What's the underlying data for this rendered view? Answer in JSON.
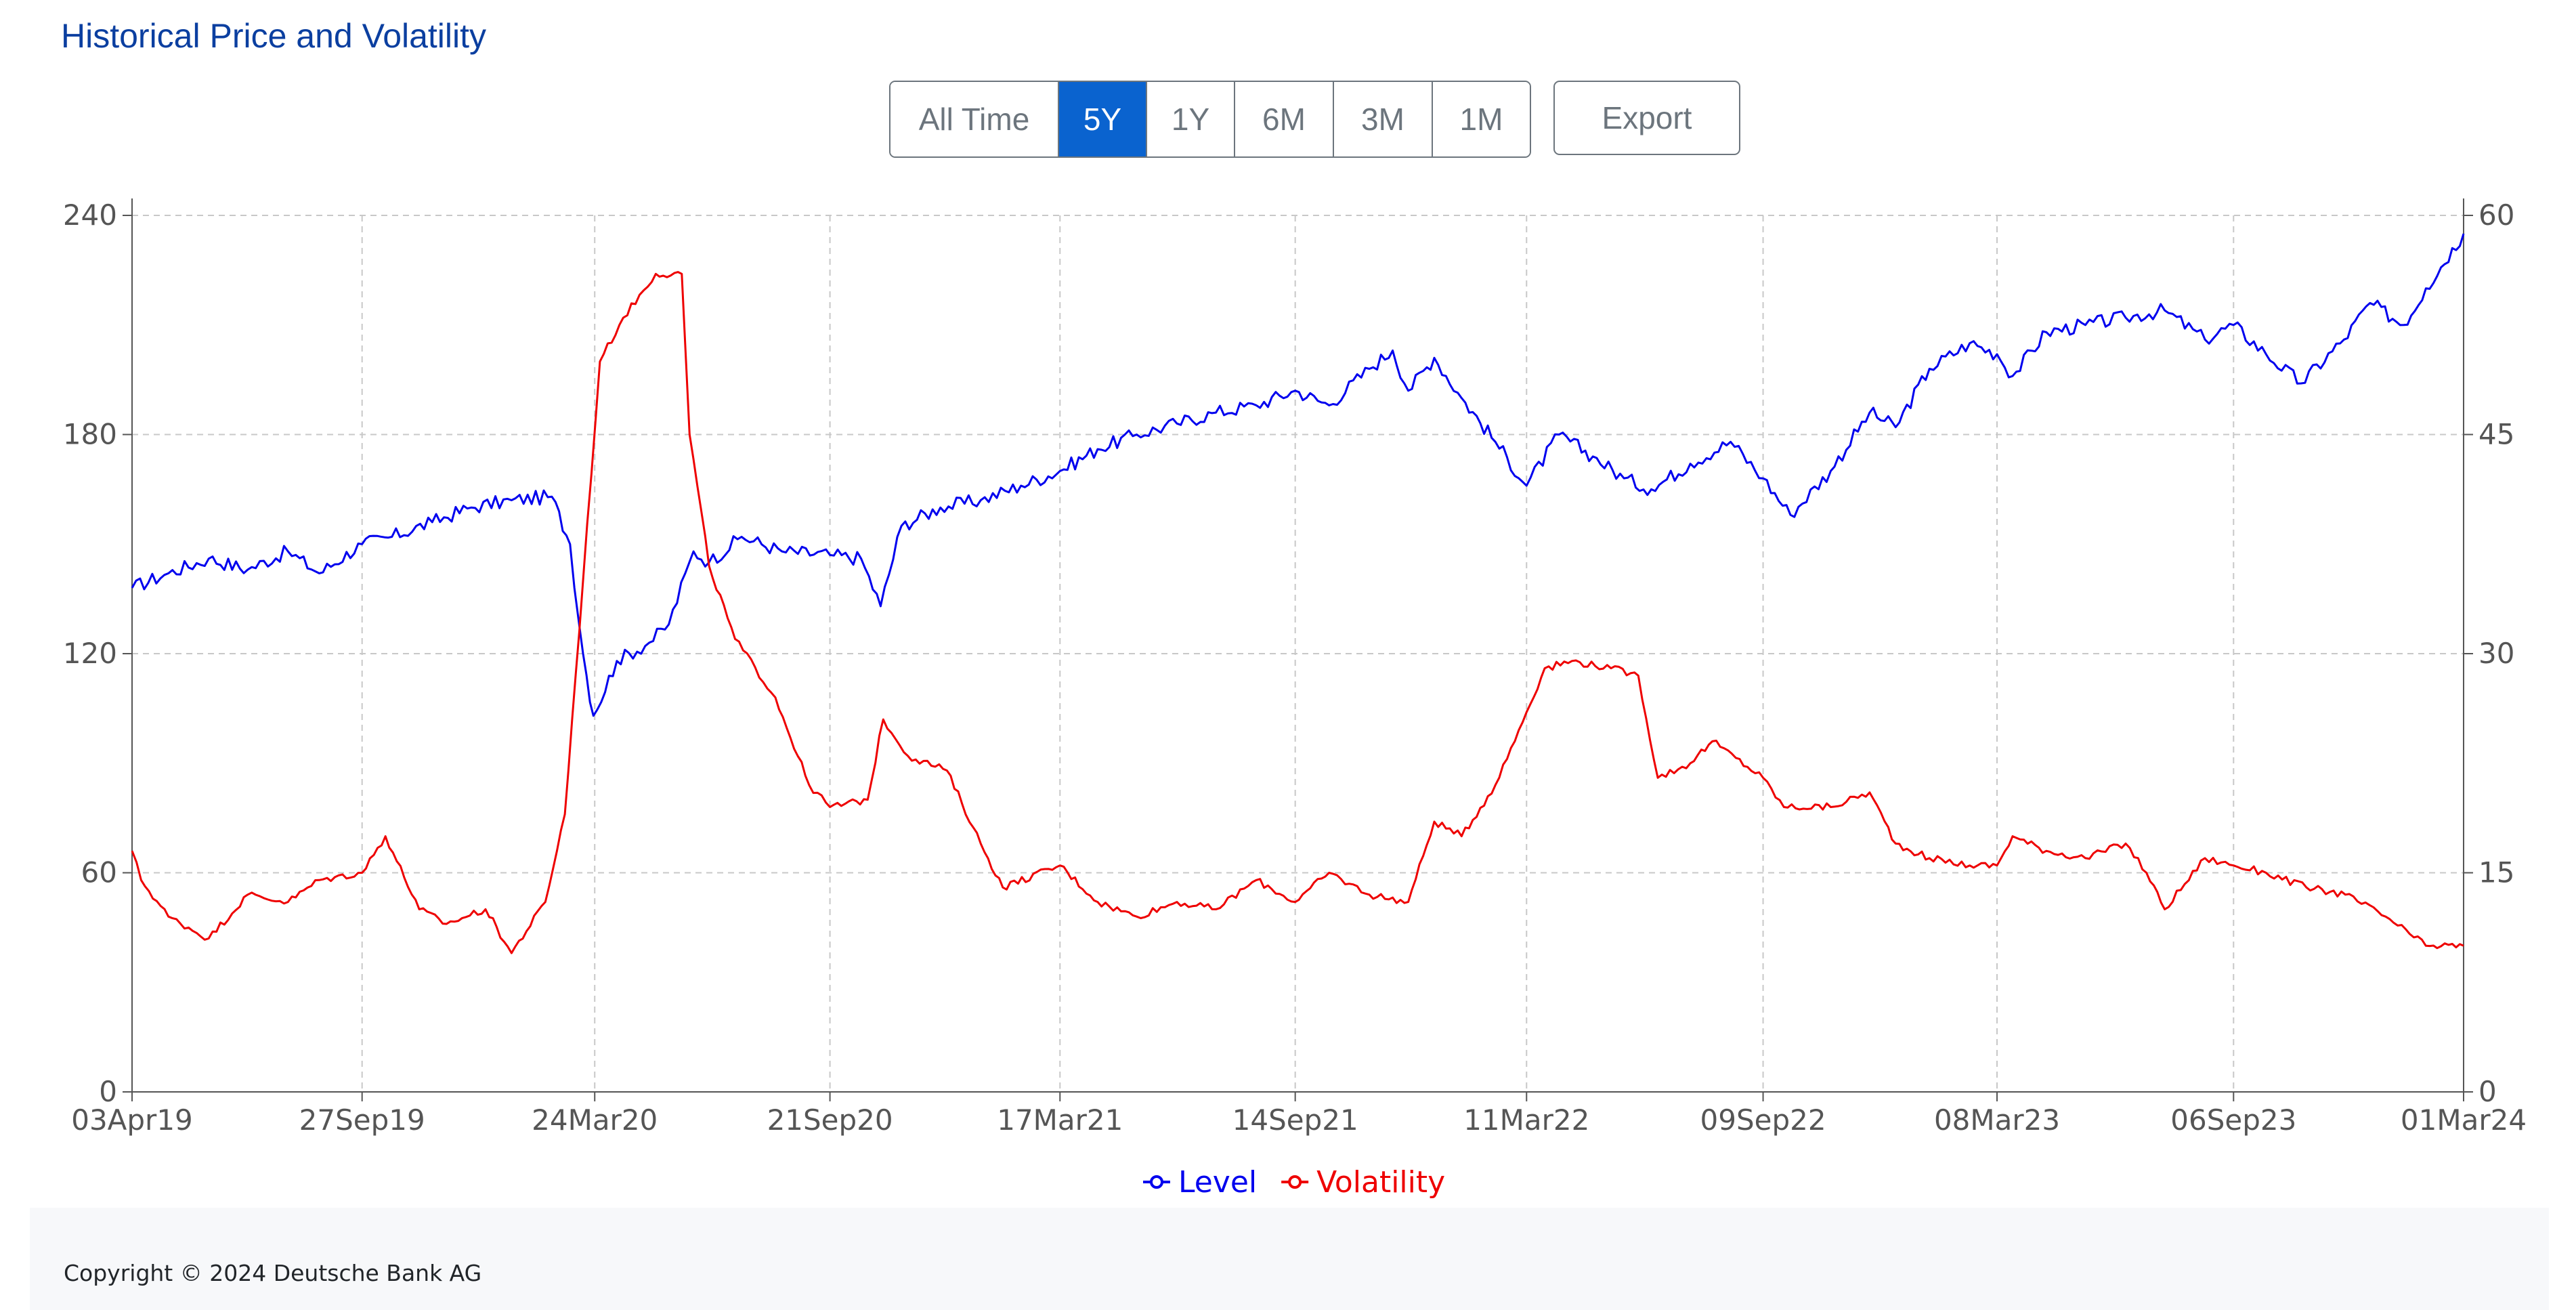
{
  "header": {
    "title": "Historical Price and Volatility"
  },
  "toolbar": {
    "ranges": [
      "All Time",
      "5Y",
      "1Y",
      "6M",
      "3M",
      "1M"
    ],
    "active_range": "5Y",
    "export_label": "Export"
  },
  "footer": {
    "copyright": "Copyright © 2024 Deutsche Bank AG"
  },
  "chart_data": {
    "type": "line",
    "x_ticks": [
      "03Apr19",
      "27Sep19",
      "24Mar20",
      "21Sep20",
      "17Mar21",
      "14Sep21",
      "11Mar22",
      "09Sep22",
      "08Mar23",
      "06Sep23",
      "01Mar24"
    ],
    "y_left": {
      "ticks": [
        "0",
        "60",
        "120",
        "180",
        "240"
      ],
      "range": [
        0,
        240
      ]
    },
    "y_right": {
      "ticks": [
        "0",
        "15",
        "30",
        "45",
        "60"
      ],
      "range": [
        0,
        60
      ]
    },
    "grid": true,
    "legend_placement": "bottom-center",
    "series": [
      {
        "name": "Level",
        "axis": "left",
        "color": "#0000ee",
        "points": [
          [
            "2019-04-03",
            138
          ],
          [
            "2019-05-01",
            142
          ],
          [
            "2019-06-01",
            146
          ],
          [
            "2019-07-01",
            143
          ],
          [
            "2019-08-01",
            148
          ],
          [
            "2019-08-25",
            142
          ],
          [
            "2019-09-27",
            150
          ],
          [
            "2019-10-20",
            152
          ],
          [
            "2019-11-20",
            156
          ],
          [
            "2019-12-20",
            160
          ],
          [
            "2020-01-20",
            162
          ],
          [
            "2020-02-20",
            163
          ],
          [
            "2020-03-05",
            150
          ],
          [
            "2020-03-15",
            120
          ],
          [
            "2020-03-23",
            103
          ],
          [
            "2020-04-10",
            118
          ],
          [
            "2020-05-05",
            123
          ],
          [
            "2020-05-20",
            128
          ],
          [
            "2020-06-08",
            148
          ],
          [
            "2020-06-20",
            145
          ],
          [
            "2020-07-15",
            152
          ],
          [
            "2020-08-15",
            148
          ],
          [
            "2020-09-21",
            147
          ],
          [
            "2020-10-15",
            146
          ],
          [
            "2020-10-30",
            133
          ],
          [
            "2020-11-15",
            155
          ],
          [
            "2020-12-15",
            160
          ],
          [
            "2021-01-15",
            162
          ],
          [
            "2021-02-15",
            166
          ],
          [
            "2021-03-17",
            170
          ],
          [
            "2021-04-15",
            176
          ],
          [
            "2021-05-15",
            180
          ],
          [
            "2021-06-15",
            183
          ],
          [
            "2021-07-15",
            186
          ],
          [
            "2021-08-15",
            188
          ],
          [
            "2021-09-14",
            192
          ],
          [
            "2021-10-10",
            188
          ],
          [
            "2021-11-10",
            198
          ],
          [
            "2021-11-28",
            203
          ],
          [
            "2021-12-10",
            192
          ],
          [
            "2021-12-30",
            201
          ],
          [
            "2022-01-20",
            190
          ],
          [
            "2022-02-15",
            178
          ],
          [
            "2022-03-11",
            166
          ],
          [
            "2022-04-05",
            180
          ],
          [
            "2022-05-01",
            174
          ],
          [
            "2022-05-25",
            168
          ],
          [
            "2022-06-15",
            165
          ],
          [
            "2022-07-15",
            172
          ],
          [
            "2022-08-15",
            178
          ],
          [
            "2022-09-09",
            168
          ],
          [
            "2022-09-30",
            158
          ],
          [
            "2022-10-31",
            170
          ],
          [
            "2022-11-30",
            186
          ],
          [
            "2022-12-20",
            182
          ],
          [
            "2023-01-15",
            198
          ],
          [
            "2023-02-15",
            205
          ],
          [
            "2023-03-08",
            202
          ],
          [
            "2023-03-20",
            196
          ],
          [
            "2023-04-15",
            208
          ],
          [
            "2023-05-15",
            210
          ],
          [
            "2023-06-15",
            212
          ],
          [
            "2023-07-15",
            214
          ],
          [
            "2023-08-15",
            206
          ],
          [
            "2023-09-06",
            210
          ],
          [
            "2023-10-01",
            202
          ],
          [
            "2023-10-28",
            194
          ],
          [
            "2023-11-30",
            206
          ],
          [
            "2023-12-20",
            216
          ],
          [
            "2024-01-15",
            210
          ],
          [
            "2024-02-01",
            220
          ],
          [
            "2024-03-01",
            235
          ]
        ]
      },
      {
        "name": "Volatility",
        "axis": "right",
        "color": "#ee0000",
        "points": [
          [
            "2019-04-03",
            16.5
          ],
          [
            "2019-04-10",
            14.5
          ],
          [
            "2019-05-01",
            12
          ],
          [
            "2019-06-01",
            10.5
          ],
          [
            "2019-07-01",
            13.5
          ],
          [
            "2019-08-01",
            13
          ],
          [
            "2019-08-25",
            14.5
          ],
          [
            "2019-09-27",
            15
          ],
          [
            "2019-10-15",
            17.5
          ],
          [
            "2019-11-10",
            12.5
          ],
          [
            "2019-12-01",
            11.5
          ],
          [
            "2019-12-31",
            12.5
          ],
          [
            "2020-01-20",
            9.5
          ],
          [
            "2020-02-15",
            13
          ],
          [
            "2020-03-01",
            19
          ],
          [
            "2020-03-15",
            35
          ],
          [
            "2020-03-28",
            50
          ],
          [
            "2020-04-15",
            53
          ],
          [
            "2020-05-10",
            56
          ],
          [
            "2020-05-30",
            56
          ],
          [
            "2020-06-05",
            45
          ],
          [
            "2020-06-20",
            36
          ],
          [
            "2020-07-10",
            31
          ],
          [
            "2020-08-10",
            27
          ],
          [
            "2020-09-05",
            21
          ],
          [
            "2020-09-21",
            19.5
          ],
          [
            "2020-10-20",
            20
          ],
          [
            "2020-11-01",
            25.5
          ],
          [
            "2020-11-20",
            23
          ],
          [
            "2020-12-20",
            22
          ],
          [
            "2021-01-15",
            17
          ],
          [
            "2021-02-01",
            14
          ],
          [
            "2021-03-17",
            15.5
          ],
          [
            "2021-04-15",
            13
          ],
          [
            "2021-05-15",
            12
          ],
          [
            "2021-06-15",
            13
          ],
          [
            "2021-07-15",
            12.5
          ],
          [
            "2021-08-15",
            14.5
          ],
          [
            "2021-09-14",
            13
          ],
          [
            "2021-10-10",
            15
          ],
          [
            "2021-11-10",
            13.5
          ],
          [
            "2021-12-10",
            13
          ],
          [
            "2021-12-30",
            18.5
          ],
          [
            "2022-01-20",
            17.5
          ],
          [
            "2022-02-15",
            21
          ],
          [
            "2022-03-11",
            26
          ],
          [
            "2022-03-25",
            29
          ],
          [
            "2022-04-15",
            29.5
          ],
          [
            "2022-05-15",
            29
          ],
          [
            "2022-06-05",
            28.5
          ],
          [
            "2022-06-20",
            21.5
          ],
          [
            "2022-07-15",
            22.5
          ],
          [
            "2022-08-01",
            24
          ],
          [
            "2022-09-09",
            21.5
          ],
          [
            "2022-09-25",
            19.5
          ],
          [
            "2022-10-31",
            19.5
          ],
          [
            "2022-11-30",
            20.5
          ],
          [
            "2022-12-20",
            17
          ],
          [
            "2023-01-15",
            16
          ],
          [
            "2023-02-15",
            15.5
          ],
          [
            "2023-03-08",
            15.5
          ],
          [
            "2023-03-20",
            17.5
          ],
          [
            "2023-04-15",
            16.5
          ],
          [
            "2023-05-15",
            16
          ],
          [
            "2023-06-15",
            17
          ],
          [
            "2023-07-01",
            15
          ],
          [
            "2023-07-15",
            12.5
          ],
          [
            "2023-08-15",
            16
          ],
          [
            "2023-09-06",
            15.5
          ],
          [
            "2023-10-01",
            15
          ],
          [
            "2023-11-01",
            14
          ],
          [
            "2023-12-01",
            13.5
          ],
          [
            "2024-01-01",
            12
          ],
          [
            "2024-02-01",
            10
          ],
          [
            "2024-03-01",
            10
          ]
        ]
      }
    ]
  }
}
